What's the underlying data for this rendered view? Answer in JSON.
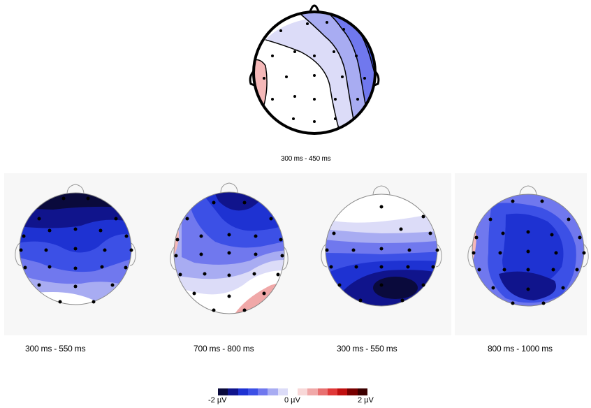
{
  "maps": [
    {
      "id": "top",
      "caption": "300 ms - 450 ms"
    },
    {
      "id": "m1",
      "caption": "300 ms - 550 ms"
    },
    {
      "id": "m2",
      "caption": "700 ms - 800 ms"
    },
    {
      "id": "m3",
      "caption": "300 ms - 550 ms"
    },
    {
      "id": "m4",
      "caption": "800 ms - 1000 ms"
    }
  ],
  "colorbar": {
    "min_label": "-2 µV",
    "mid_label": "0 µV",
    "max_label": "2 µV",
    "colors": [
      "#0a0a3c",
      "#10148c",
      "#1e32d2",
      "#3c50e6",
      "#7078ee",
      "#a8acf2",
      "#dcdcf8",
      "#ffffff",
      "#f8d8d8",
      "#f0a8a8",
      "#e87070",
      "#e03838",
      "#c01010",
      "#780000",
      "#3c0000"
    ]
  }
}
